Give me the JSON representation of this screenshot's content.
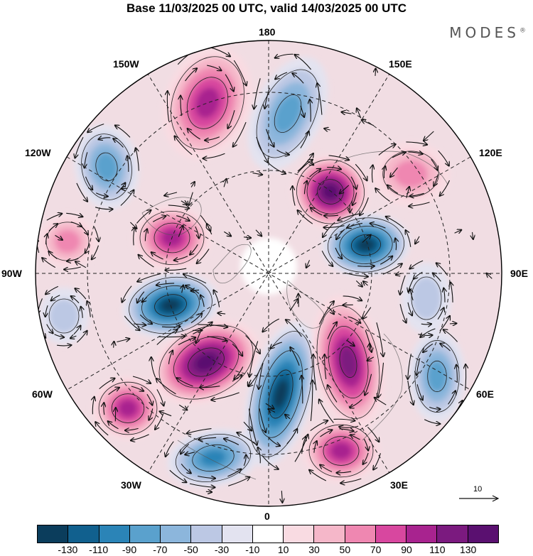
{
  "title": "Base 11/03/2025 00 UTC, valid 14/03/2025 00 UTC",
  "brand": "MODES",
  "brand_mark": "®",
  "longitude_labels": {
    "top": "180",
    "bottom": "0",
    "left": "90W",
    "right": "90E",
    "upper_left_outer": "150W",
    "upper_right_outer": "150E",
    "upper_left": "120W",
    "upper_right": "120E",
    "lower_left": "60W",
    "lower_right": "60E",
    "lower_left_inner": "30W",
    "lower_right_inner": "30E"
  },
  "vector_scale": {
    "label": "10",
    "icon": "arrow-right-icon"
  },
  "colorbar": {
    "ticks": [
      "-130",
      "-110",
      "-90",
      "-70",
      "-50",
      "-30",
      "-10",
      "10",
      "30",
      "50",
      "70",
      "90",
      "110",
      "130"
    ],
    "colors": [
      "#0b3d5c",
      "#11608e",
      "#2b84b7",
      "#5aa1cd",
      "#8cb6dc",
      "#bcc8e4",
      "#e3e3f0",
      "#ffffff",
      "#f9dbe2",
      "#f5b7c9",
      "#ef87b1",
      "#d8479f",
      "#a8238f",
      "#7b1a7f",
      "#5a1070"
    ]
  }
}
